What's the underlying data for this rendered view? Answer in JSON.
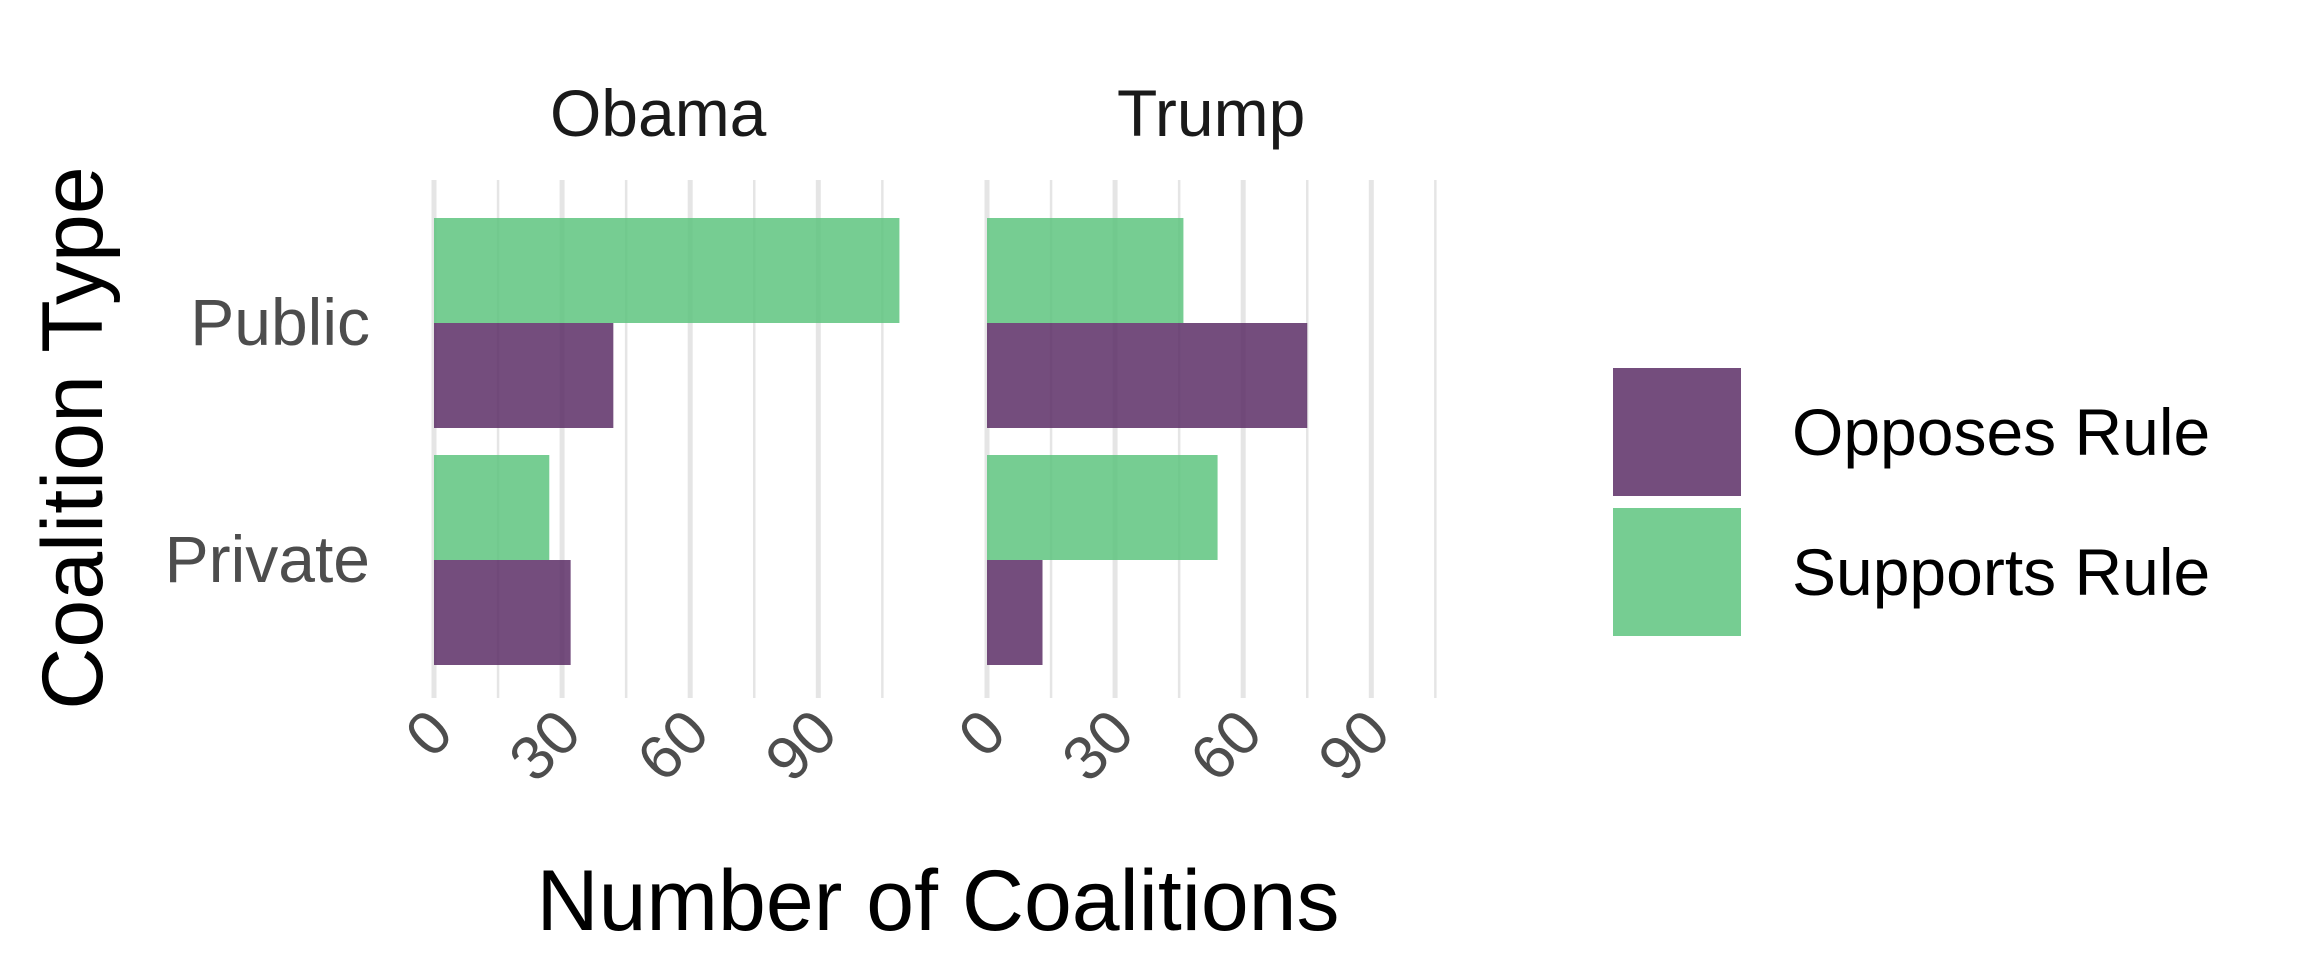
{
  "chart_data": {
    "type": "bar",
    "orientation": "horizontal",
    "facets": [
      {
        "name": "Obama",
        "categories": [
          "Public",
          "Private"
        ],
        "series": [
          {
            "name": "Supports Rule",
            "values": [
              109,
              27
            ]
          },
          {
            "name": "Opposes Rule",
            "values": [
              42,
              32
            ]
          }
        ]
      },
      {
        "name": "Trump",
        "categories": [
          "Public",
          "Private"
        ],
        "series": [
          {
            "name": "Supports Rule",
            "values": [
              46,
              54
            ]
          },
          {
            "name": "Opposes Rule",
            "values": [
              75,
              13
            ]
          }
        ]
      }
    ],
    "categories": [
      "Public",
      "Private"
    ],
    "xlabel": "Number of Coalitions",
    "ylabel": "Coalition Type",
    "xlim": [
      0,
      105
    ],
    "xticks": [
      0,
      30,
      60,
      90
    ],
    "minor_grid": true,
    "grid": true,
    "legend": {
      "position": "right",
      "entries": [
        {
          "name": "Opposes Rule",
          "color": "#5c2e66"
        },
        {
          "name": "Supports Rule",
          "color": "#5ec47f"
        }
      ]
    },
    "colors": {
      "Opposes Rule": "#5c2e66",
      "Supports Rule": "#5ec47f"
    },
    "bar_opacity": 0.85
  }
}
